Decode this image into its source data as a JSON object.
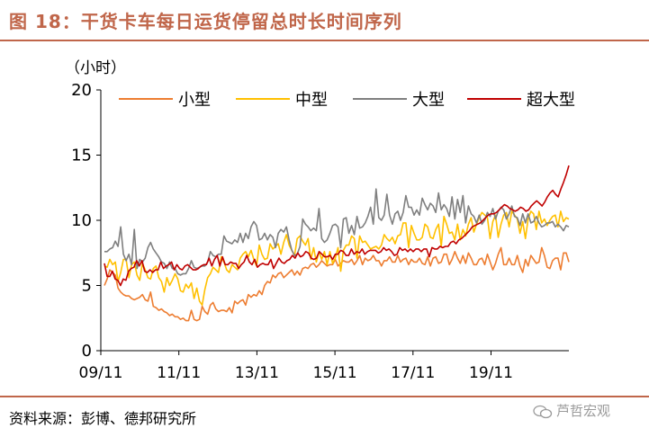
{
  "title": "图 18：干货卡车每日运货停留总时长时间序列",
  "source": "资料来源：彭博、德邦研究所",
  "watermark": "芦哲宏观",
  "colors": {
    "title": "#C0664A",
    "rule": "#C0664A"
  },
  "chart_data": {
    "type": "line",
    "ylabel": "（小时）",
    "ylim": [
      0,
      20
    ],
    "yticks": [
      0,
      5,
      10,
      15,
      20
    ],
    "xticks": [
      "09/11",
      "11/11",
      "13/11",
      "15/11",
      "17/11",
      "19/11"
    ],
    "x_start": "2009-11",
    "x_end": "2020-12",
    "grid": false,
    "legend_position": "top",
    "series": [
      {
        "name": "小型",
        "color": "#ED7D31",
        "values": [
          5.0,
          5.5,
          6.2,
          6.0,
          5.8,
          4.8,
          4.5,
          4.3,
          4.2,
          4.2,
          4.0,
          3.9,
          4.0,
          4.1,
          4.3,
          3.9,
          3.8,
          4.5,
          3.4,
          3.3,
          3.1,
          3.2,
          3.0,
          2.9,
          2.7,
          2.8,
          2.6,
          2.6,
          2.4,
          2.5,
          2.3,
          2.3,
          3.1,
          2.4,
          2.3,
          2.4,
          3.4,
          3.0,
          2.8,
          3.5,
          3.7,
          3.2,
          3.0,
          3.1,
          3.1,
          3.0,
          3.3,
          2.9,
          3.8,
          3.6,
          3.8,
          3.9,
          3.5,
          4.3,
          4.1,
          4.3,
          4.2,
          4.6,
          4.3,
          5.0,
          5.3,
          5.2,
          5.8,
          5.6,
          5.9,
          6.0,
          5.6,
          5.8,
          6.0,
          6.2,
          5.8,
          6.1,
          5.8,
          6.3,
          6.4,
          6.3,
          6.6,
          6.7,
          6.4,
          6.6,
          6.9,
          6.7,
          6.5,
          6.6,
          6.6,
          7.0,
          6.5,
          6.7,
          6.9,
          6.8,
          6.8,
          7.0,
          6.6,
          6.9,
          7.3,
          6.6,
          7.1,
          6.9,
          7.0,
          7.3,
          6.9,
          6.9,
          6.5,
          6.9,
          6.9,
          7.2,
          6.8,
          6.8,
          7.3,
          6.8,
          7.0,
          7.1,
          6.6,
          7.0,
          6.8,
          6.8,
          7.1,
          6.7,
          6.6,
          7.2,
          6.5,
          7.1,
          7.2,
          6.7,
          6.8,
          7.4,
          7.4,
          6.6,
          7.0,
          7.6,
          7.1,
          6.7,
          7.3,
          6.7,
          7.5,
          7.1,
          6.6,
          6.6,
          7.0,
          7.1,
          6.6,
          7.4,
          6.8,
          6.2,
          6.7,
          7.4,
          7.9,
          6.6,
          6.6,
          7.1,
          6.6,
          6.6,
          7.3,
          6.5,
          6.0,
          7.0,
          6.5,
          7.3,
          7.0,
          6.7,
          6.8,
          7.9,
          7.3,
          6.4,
          6.3,
          6.9,
          7.1,
          7.1,
          6.2,
          7.5,
          7.5,
          6.8
        ]
      },
      {
        "name": "中型",
        "color": "#FFC000",
        "values": [
          6.5,
          6.4,
          7.0,
          6.6,
          6.8,
          5.3,
          6.0,
          7.0,
          7.0,
          5.6,
          6.6,
          6.8,
          5.8,
          5.4,
          6.7,
          6.2,
          5.6,
          5.5,
          6.3,
          6.5,
          5.6,
          5.3,
          4.5,
          5.6,
          5.0,
          5.4,
          5.9,
          5.5,
          4.6,
          4.5,
          5.1,
          4.8,
          5.2,
          4.0,
          4.8,
          3.8,
          3.5,
          4.7,
          5.6,
          5.9,
          6.4,
          6.2,
          6.0,
          7.2,
          6.8,
          6.2,
          6.0,
          6.6,
          6.4,
          6.2,
          7.1,
          7.4,
          7.6,
          7.2,
          7.7,
          7.0,
          6.5,
          8.1,
          7.4,
          7.0,
          7.1,
          8.2,
          7.8,
          8.0,
          8.2,
          7.4,
          8.3,
          8.9,
          8.1,
          7.7,
          7.3,
          8.6,
          8.8,
          8.4,
          8.1,
          8.6,
          7.0,
          7.9,
          6.8,
          7.6,
          7.0,
          7.6,
          6.6,
          7.6,
          6.7,
          7.1,
          7.9,
          6.1,
          7.7,
          8.1,
          8.1,
          8.8,
          8.6,
          7.1,
          8.8,
          8.3,
          8.4,
          8.1,
          7.8,
          7.9,
          8.0,
          7.8,
          8.1,
          8.9,
          8.6,
          8.4,
          8.7,
          8.2,
          8.8,
          8.9,
          9.8,
          9.8,
          7.9,
          9.6,
          9.0,
          8.5,
          8.5,
          8.7,
          9.7,
          9.5,
          8.7,
          8.6,
          9.3,
          9.7,
          8.0,
          10.3,
          9.7,
          9.0,
          9.1,
          8.5,
          9.7,
          8.5,
          9.3,
          8.8,
          9.7,
          10.2,
          9.1,
          9.7,
          10.2,
          10.6,
          10.4,
          10.2,
          8.6,
          9.9,
          10.4,
          8.7,
          9.7,
          10.4,
          10.6,
          9.5,
          10.7,
          10.4,
          10.1,
          9.0,
          9.9,
          8.6,
          10.1,
          10.7,
          10.5,
          9.3,
          10.7,
          9.8,
          10.1,
          9.6,
          10.0,
          10.3,
          10.4,
          9.5,
          10.7,
          9.9,
          10.2,
          10.1
        ]
      },
      {
        "name": "大型",
        "color": "#7F7F7F",
        "values": [
          7.6,
          7.6,
          7.8,
          7.9,
          8.4,
          8.0,
          9.5,
          7.4,
          6.9,
          7.4,
          6.6,
          9.3,
          6.3,
          7.0,
          6.8,
          7.1,
          7.9,
          8.3,
          7.8,
          7.5,
          7.2,
          6.8,
          6.7,
          6.3,
          6.8,
          6.3,
          6.3,
          5.9,
          5.8,
          5.9,
          5.9,
          6.3,
          6.9,
          6.4,
          6.3,
          6.4,
          6.5,
          6.5,
          6.8,
          7.6,
          7.3,
          7.2,
          7.4,
          7.4,
          8.8,
          8.4,
          8.3,
          8.2,
          8.5,
          8.3,
          9.0,
          8.3,
          9.0,
          8.6,
          9.5,
          9.9,
          9.6,
          8.5,
          8.6,
          9.0,
          8.5,
          8.9,
          8.7,
          7.9,
          9.0,
          9.3,
          9.1,
          9.5,
          8.5,
          7.7,
          7.3,
          7.4,
          8.0,
          10.1,
          9.7,
          9.5,
          9.2,
          9.4,
          9.2,
          10.9,
          8.6,
          8.3,
          8.5,
          9.0,
          9.6,
          9.7,
          9.5,
          7.9,
          10.1,
          10.2,
          9.0,
          9.6,
          8.9,
          10.3,
          9.4,
          9.5,
          9.8,
          10.3,
          11.0,
          9.7,
          12.4,
          10.2,
          10.0,
          10.4,
          12.0,
          10.4,
          9.7,
          10.5,
          10.7,
          10.0,
          10.6,
          11.9,
          11.0,
          11.0,
          10.4,
          10.8,
          10.4,
          11.7,
          11.2,
          10.8,
          11.3,
          11.1,
          10.6,
          12.1,
          10.8,
          11.2,
          10.9,
          10.3,
          11.8,
          10.1,
          11.6,
          10.6,
          11.9,
          9.8,
          11.1,
          10.5,
          10.3,
          9.8,
          10.4,
          9.7,
          10.0,
          10.6,
          10.3,
          10.9,
          10.1,
          10.7,
          11.0,
          10.8,
          10.1,
          10.5,
          11.1,
          10.3,
          10.2,
          9.6,
          10.5,
          9.8,
          10.5,
          9.8,
          9.9,
          10.3,
          9.8,
          9.5,
          9.6,
          9.8,
          9.8,
          9.9,
          9.5,
          9.7,
          9.5,
          9.2,
          9.6,
          9.5
        ]
      },
      {
        "name": "超大型",
        "color": "#C00000",
        "values": [
          6.7,
          5.7,
          5.7,
          6.1,
          5.5,
          5.4,
          5.0,
          5.5,
          5.4,
          6.1,
          6.3,
          6.4,
          6.9,
          6.5,
          6.9,
          6.1,
          6.0,
          6.2,
          6.0,
          6.2,
          6.2,
          6.8,
          6.3,
          6.5,
          6.6,
          6.8,
          6.2,
          6.6,
          6.3,
          6.2,
          6.5,
          6.6,
          6.4,
          6.2,
          6.2,
          6.3,
          6.5,
          6.6,
          6.6,
          7.1,
          6.5,
          7.0,
          7.3,
          6.5,
          7.2,
          6.6,
          6.6,
          6.8,
          6.7,
          6.7,
          6.3,
          6.6,
          6.8,
          7.3,
          6.8,
          6.6,
          7.0,
          6.4,
          6.6,
          6.7,
          6.6,
          6.6,
          7.0,
          6.3,
          6.7,
          7.1,
          6.8,
          6.7,
          6.9,
          7.0,
          7.3,
          7.1,
          7.5,
          7.2,
          7.3,
          7.6,
          7.5,
          7.1,
          7.0,
          7.1,
          7.6,
          7.4,
          7.2,
          7.2,
          7.3,
          7.0,
          7.4,
          7.4,
          7.7,
          7.6,
          7.3,
          7.3,
          7.8,
          7.4,
          7.6,
          7.5,
          7.8,
          7.4,
          7.6,
          7.7,
          7.7,
          7.7,
          7.5,
          7.6,
          7.9,
          7.7,
          7.8,
          7.6,
          7.3,
          7.4,
          7.9,
          7.7,
          7.8,
          7.6,
          7.8,
          7.6,
          7.8,
          7.8,
          7.6,
          7.8,
          7.8,
          7.2,
          7.9,
          7.8,
          7.8,
          8.0,
          7.9,
          8.0,
          8.0,
          8.3,
          8.4,
          8.2,
          8.5,
          8.6,
          8.8,
          9.0,
          9.2,
          9.5,
          9.6,
          9.7,
          9.8,
          10.0,
          10.2,
          10.4,
          10.5,
          10.5,
          10.6,
          10.8,
          11.0,
          11.2,
          11.1,
          10.9,
          10.8,
          10.7,
          10.8,
          11.0,
          10.9,
          10.7,
          10.8,
          11.1,
          11.3,
          11.5,
          11.3,
          11.1,
          11.4,
          11.8,
          12.1,
          12.3,
          12.0,
          11.8,
          12.4,
          12.9,
          13.5,
          14.2
        ]
      }
    ]
  }
}
